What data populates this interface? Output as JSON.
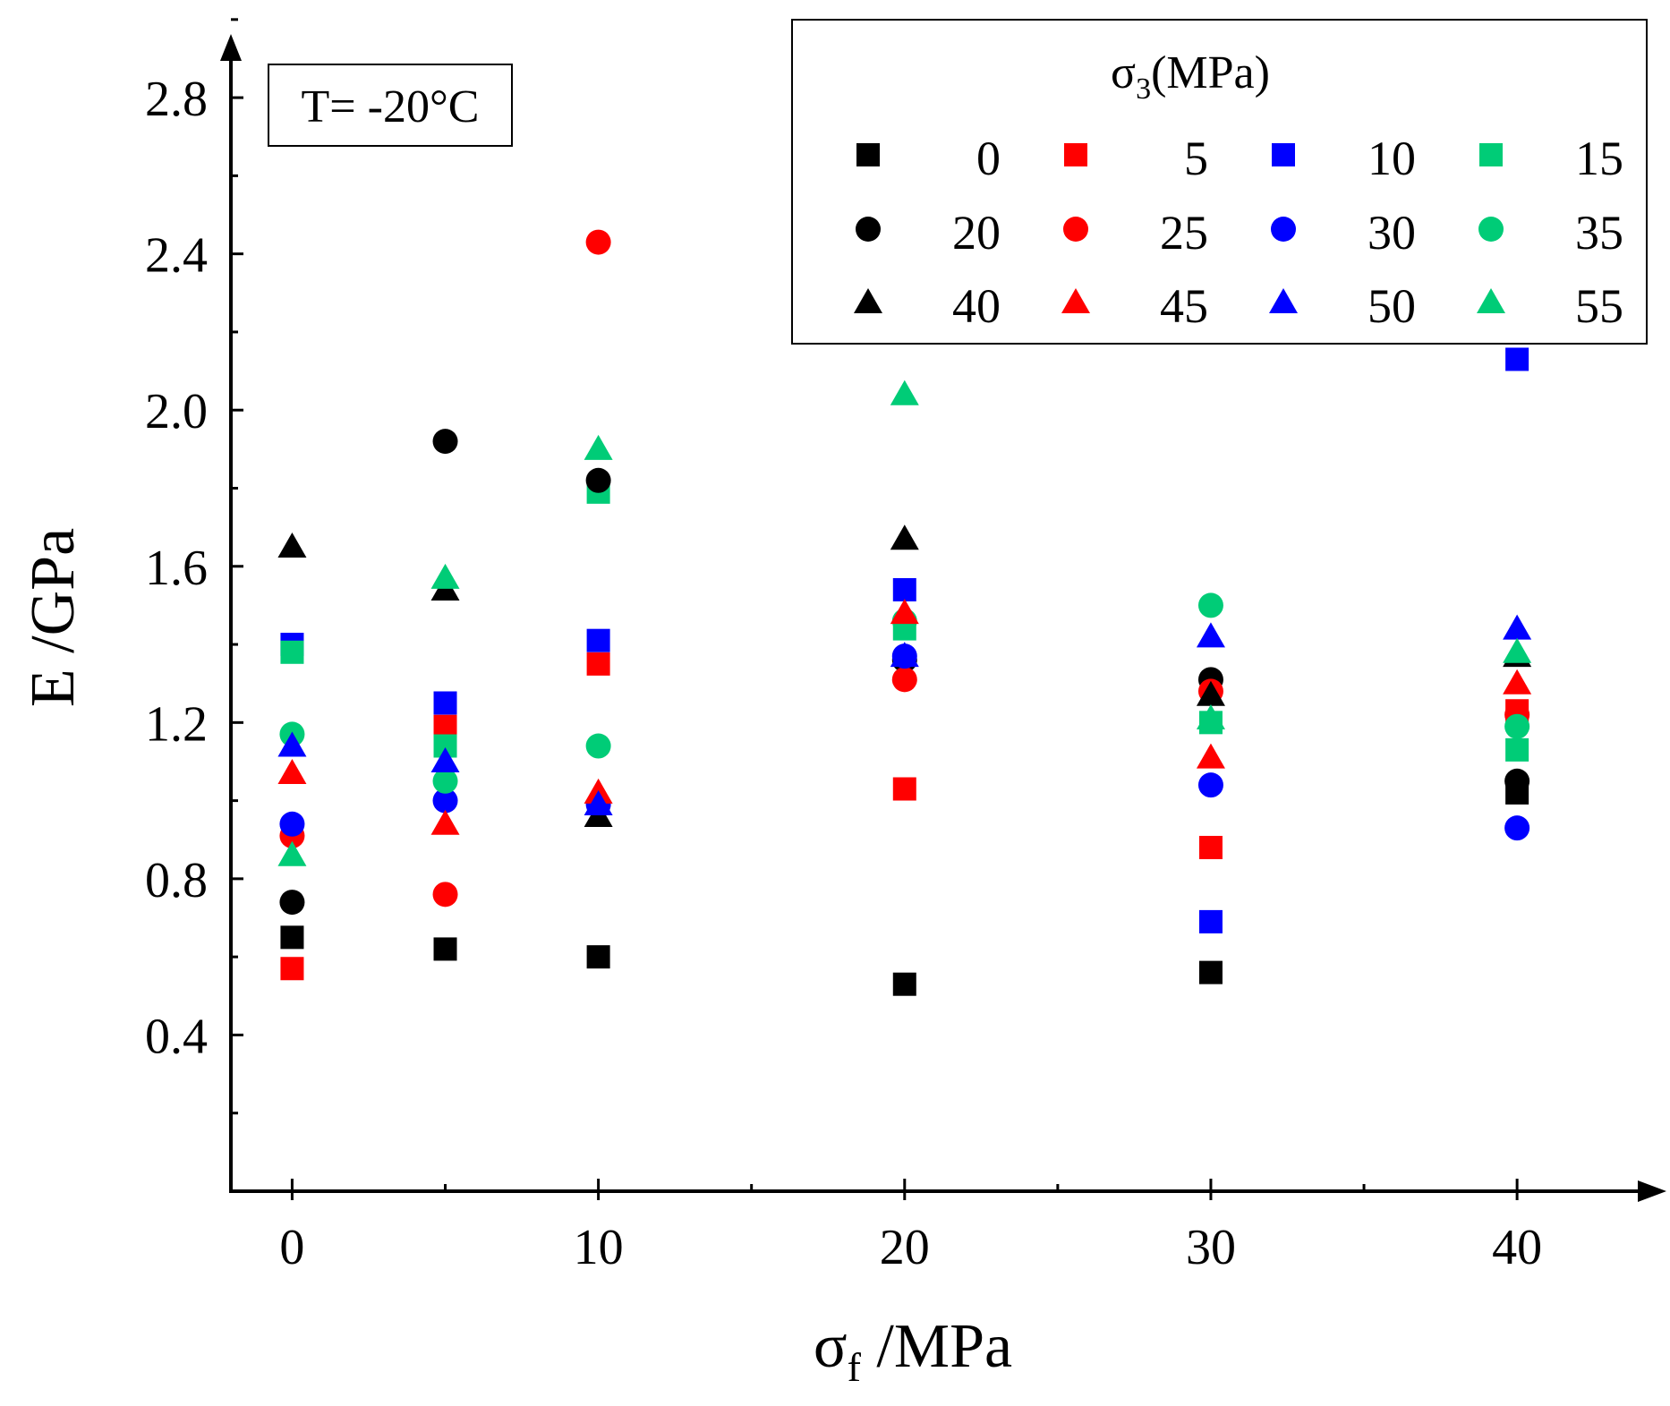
{
  "chart_data": {
    "type": "scatter",
    "title": "",
    "xlabel": "σ",
    "xlabel_sub": "f",
    "xlabel_unit": " /MPa",
    "ylabel": "E /GPa",
    "xlim": [
      -2,
      44
    ],
    "ylim": [
      0.0,
      3.05
    ],
    "xticks": [
      0,
      10,
      20,
      30,
      40
    ],
    "xminor": [
      5,
      15,
      25,
      35
    ],
    "yticks": [
      0.4,
      0.8,
      1.2,
      1.6,
      2.0,
      2.4,
      2.8
    ],
    "yminor": [
      0.2,
      0.6,
      1.0,
      1.4,
      1.8,
      2.2,
      2.6,
      3.0
    ],
    "annotation": "T= -20°C",
    "legend": {
      "title": "σ",
      "title_sub": "3",
      "title_unit": "(MPa)",
      "position": "top-right",
      "columns": 4
    },
    "colors": {
      "black": "#000000",
      "red": "#ff0000",
      "blue": "#0000ff",
      "green": "#00cc77"
    },
    "x": [
      0,
      5,
      10,
      20,
      30,
      40
    ],
    "series": [
      {
        "name": "0",
        "marker": "square",
        "color": "#000000",
        "values": [
          0.65,
          0.62,
          0.6,
          0.53,
          0.56,
          1.02
        ]
      },
      {
        "name": "5",
        "marker": "square",
        "color": "#ff0000",
        "values": [
          0.57,
          1.19,
          1.35,
          1.03,
          0.88,
          1.23
        ]
      },
      {
        "name": "10",
        "marker": "square",
        "color": "#0000ff",
        "values": [
          1.4,
          1.25,
          1.41,
          1.54,
          0.69,
          2.13
        ]
      },
      {
        "name": "15",
        "marker": "square",
        "color": "#00cc77",
        "values": [
          1.38,
          1.14,
          1.79,
          1.44,
          1.2,
          1.13
        ]
      },
      {
        "name": "20",
        "marker": "circle",
        "color": "#000000",
        "values": [
          0.74,
          1.92,
          1.82,
          1.36,
          1.31,
          1.05
        ]
      },
      {
        "name": "25",
        "marker": "circle",
        "color": "#ff0000",
        "values": [
          0.91,
          0.76,
          2.43,
          1.31,
          1.28,
          1.22
        ]
      },
      {
        "name": "30",
        "marker": "circle",
        "color": "#0000ff",
        "values": [
          0.94,
          1.0,
          0.99,
          1.37,
          1.04,
          0.93
        ]
      },
      {
        "name": "35",
        "marker": "circle",
        "color": "#00cc77",
        "values": [
          1.17,
          1.05,
          1.14,
          1.46,
          1.5,
          1.19
        ]
      },
      {
        "name": "40",
        "marker": "triangle",
        "color": "#000000",
        "values": [
          1.65,
          1.54,
          0.96,
          1.67,
          1.27,
          1.37
        ]
      },
      {
        "name": "45",
        "marker": "triangle",
        "color": "#ff0000",
        "values": [
          1.07,
          0.94,
          1.02,
          1.48,
          1.11,
          1.3
        ]
      },
      {
        "name": "50",
        "marker": "triangle",
        "color": "#0000ff",
        "values": [
          1.14,
          1.1,
          0.99,
          1.37,
          1.42,
          1.44
        ]
      },
      {
        "name": "55",
        "marker": "triangle",
        "color": "#00cc77",
        "values": [
          0.86,
          1.57,
          1.9,
          2.04,
          1.21,
          1.38
        ]
      }
    ]
  }
}
